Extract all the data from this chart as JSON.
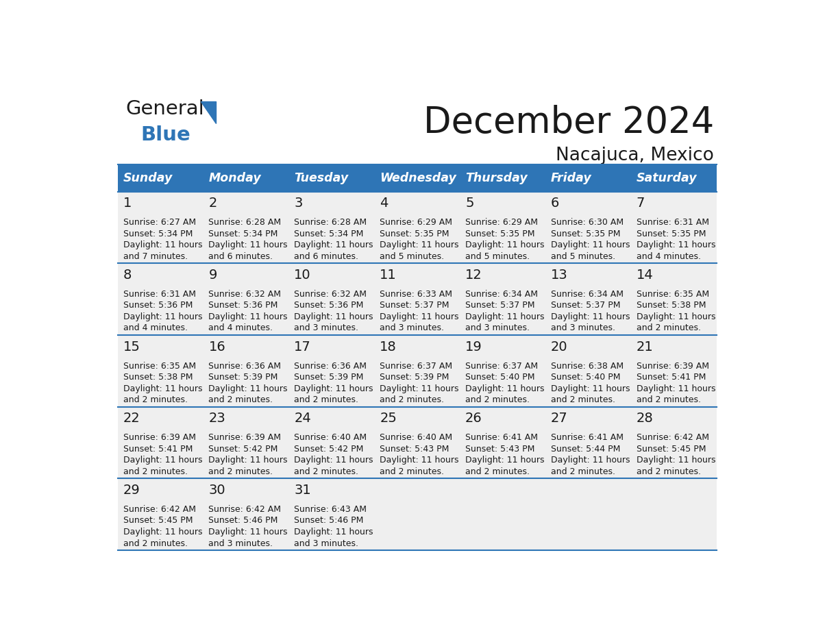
{
  "title": "December 2024",
  "subtitle": "Nacajuca, Mexico",
  "header_bg": "#2E75B6",
  "header_text_color": "#FFFFFF",
  "cell_bg": "#EFEFEF",
  "cell_bg_alt": "#FFFFFF",
  "day_headers": [
    "Sunday",
    "Monday",
    "Tuesday",
    "Wednesday",
    "Thursday",
    "Friday",
    "Saturday"
  ],
  "grid_color": "#2E75B6",
  "text_color": "#1a1a1a",
  "days": [
    {
      "day": 1,
      "col": 0,
      "row": 0,
      "sunrise": "6:27 AM",
      "sunset": "5:34 PM",
      "daylight_hrs": "11 hours",
      "daylight_min": "and 7 minutes."
    },
    {
      "day": 2,
      "col": 1,
      "row": 0,
      "sunrise": "6:28 AM",
      "sunset": "5:34 PM",
      "daylight_hrs": "11 hours",
      "daylight_min": "and 6 minutes."
    },
    {
      "day": 3,
      "col": 2,
      "row": 0,
      "sunrise": "6:28 AM",
      "sunset": "5:34 PM",
      "daylight_hrs": "11 hours",
      "daylight_min": "and 6 minutes."
    },
    {
      "day": 4,
      "col": 3,
      "row": 0,
      "sunrise": "6:29 AM",
      "sunset": "5:35 PM",
      "daylight_hrs": "11 hours",
      "daylight_min": "and 5 minutes."
    },
    {
      "day": 5,
      "col": 4,
      "row": 0,
      "sunrise": "6:29 AM",
      "sunset": "5:35 PM",
      "daylight_hrs": "11 hours",
      "daylight_min": "and 5 minutes."
    },
    {
      "day": 6,
      "col": 5,
      "row": 0,
      "sunrise": "6:30 AM",
      "sunset": "5:35 PM",
      "daylight_hrs": "11 hours",
      "daylight_min": "and 5 minutes."
    },
    {
      "day": 7,
      "col": 6,
      "row": 0,
      "sunrise": "6:31 AM",
      "sunset": "5:35 PM",
      "daylight_hrs": "11 hours",
      "daylight_min": "and 4 minutes."
    },
    {
      "day": 8,
      "col": 0,
      "row": 1,
      "sunrise": "6:31 AM",
      "sunset": "5:36 PM",
      "daylight_hrs": "11 hours",
      "daylight_min": "and 4 minutes."
    },
    {
      "day": 9,
      "col": 1,
      "row": 1,
      "sunrise": "6:32 AM",
      "sunset": "5:36 PM",
      "daylight_hrs": "11 hours",
      "daylight_min": "and 4 minutes."
    },
    {
      "day": 10,
      "col": 2,
      "row": 1,
      "sunrise": "6:32 AM",
      "sunset": "5:36 PM",
      "daylight_hrs": "11 hours",
      "daylight_min": "and 3 minutes."
    },
    {
      "day": 11,
      "col": 3,
      "row": 1,
      "sunrise": "6:33 AM",
      "sunset": "5:37 PM",
      "daylight_hrs": "11 hours",
      "daylight_min": "and 3 minutes."
    },
    {
      "day": 12,
      "col": 4,
      "row": 1,
      "sunrise": "6:34 AM",
      "sunset": "5:37 PM",
      "daylight_hrs": "11 hours",
      "daylight_min": "and 3 minutes."
    },
    {
      "day": 13,
      "col": 5,
      "row": 1,
      "sunrise": "6:34 AM",
      "sunset": "5:37 PM",
      "daylight_hrs": "11 hours",
      "daylight_min": "and 3 minutes."
    },
    {
      "day": 14,
      "col": 6,
      "row": 1,
      "sunrise": "6:35 AM",
      "sunset": "5:38 PM",
      "daylight_hrs": "11 hours",
      "daylight_min": "and 2 minutes."
    },
    {
      "day": 15,
      "col": 0,
      "row": 2,
      "sunrise": "6:35 AM",
      "sunset": "5:38 PM",
      "daylight_hrs": "11 hours",
      "daylight_min": "and 2 minutes."
    },
    {
      "day": 16,
      "col": 1,
      "row": 2,
      "sunrise": "6:36 AM",
      "sunset": "5:39 PM",
      "daylight_hrs": "11 hours",
      "daylight_min": "and 2 minutes."
    },
    {
      "day": 17,
      "col": 2,
      "row": 2,
      "sunrise": "6:36 AM",
      "sunset": "5:39 PM",
      "daylight_hrs": "11 hours",
      "daylight_min": "and 2 minutes."
    },
    {
      "day": 18,
      "col": 3,
      "row": 2,
      "sunrise": "6:37 AM",
      "sunset": "5:39 PM",
      "daylight_hrs": "11 hours",
      "daylight_min": "and 2 minutes."
    },
    {
      "day": 19,
      "col": 4,
      "row": 2,
      "sunrise": "6:37 AM",
      "sunset": "5:40 PM",
      "daylight_hrs": "11 hours",
      "daylight_min": "and 2 minutes."
    },
    {
      "day": 20,
      "col": 5,
      "row": 2,
      "sunrise": "6:38 AM",
      "sunset": "5:40 PM",
      "daylight_hrs": "11 hours",
      "daylight_min": "and 2 minutes."
    },
    {
      "day": 21,
      "col": 6,
      "row": 2,
      "sunrise": "6:39 AM",
      "sunset": "5:41 PM",
      "daylight_hrs": "11 hours",
      "daylight_min": "and 2 minutes."
    },
    {
      "day": 22,
      "col": 0,
      "row": 3,
      "sunrise": "6:39 AM",
      "sunset": "5:41 PM",
      "daylight_hrs": "11 hours",
      "daylight_min": "and 2 minutes."
    },
    {
      "day": 23,
      "col": 1,
      "row": 3,
      "sunrise": "6:39 AM",
      "sunset": "5:42 PM",
      "daylight_hrs": "11 hours",
      "daylight_min": "and 2 minutes."
    },
    {
      "day": 24,
      "col": 2,
      "row": 3,
      "sunrise": "6:40 AM",
      "sunset": "5:42 PM",
      "daylight_hrs": "11 hours",
      "daylight_min": "and 2 minutes."
    },
    {
      "day": 25,
      "col": 3,
      "row": 3,
      "sunrise": "6:40 AM",
      "sunset": "5:43 PM",
      "daylight_hrs": "11 hours",
      "daylight_min": "and 2 minutes."
    },
    {
      "day": 26,
      "col": 4,
      "row": 3,
      "sunrise": "6:41 AM",
      "sunset": "5:43 PM",
      "daylight_hrs": "11 hours",
      "daylight_min": "and 2 minutes."
    },
    {
      "day": 27,
      "col": 5,
      "row": 3,
      "sunrise": "6:41 AM",
      "sunset": "5:44 PM",
      "daylight_hrs": "11 hours",
      "daylight_min": "and 2 minutes."
    },
    {
      "day": 28,
      "col": 6,
      "row": 3,
      "sunrise": "6:42 AM",
      "sunset": "5:45 PM",
      "daylight_hrs": "11 hours",
      "daylight_min": "and 2 minutes."
    },
    {
      "day": 29,
      "col": 0,
      "row": 4,
      "sunrise": "6:42 AM",
      "sunset": "5:45 PM",
      "daylight_hrs": "11 hours",
      "daylight_min": "and 2 minutes."
    },
    {
      "day": 30,
      "col": 1,
      "row": 4,
      "sunrise": "6:42 AM",
      "sunset": "5:46 PM",
      "daylight_hrs": "11 hours",
      "daylight_min": "and 3 minutes."
    },
    {
      "day": 31,
      "col": 2,
      "row": 4,
      "sunrise": "6:43 AM",
      "sunset": "5:46 PM",
      "daylight_hrs": "11 hours",
      "daylight_min": "and 3 minutes."
    }
  ],
  "logo_text_general": "General",
  "logo_text_blue": "Blue",
  "logo_color_general": "#1a1a1a",
  "logo_color_blue": "#2E75B6",
  "logo_triangle_color": "#2E75B6"
}
